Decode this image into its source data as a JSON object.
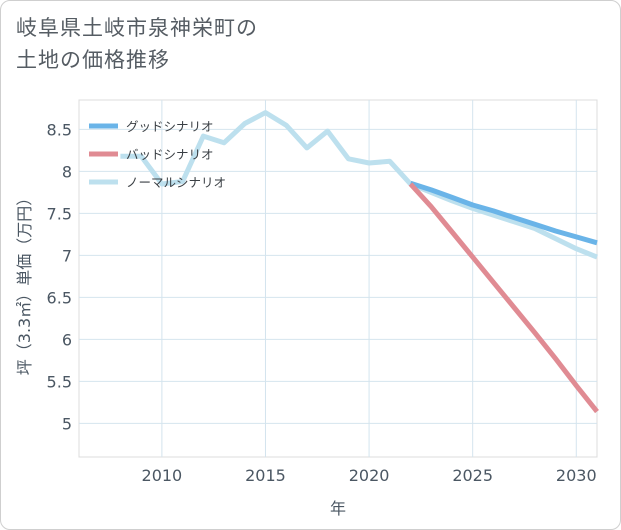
{
  "title": {
    "line1": "岐阜県土岐市泉神栄町の",
    "line2": "土地の価格推移"
  },
  "chart_data": {
    "type": "line",
    "title": "岐阜県土岐市泉神栄町の土地の価格推移",
    "xlabel": "年",
    "ylabel": "坪（3.3㎡）単価（万円）",
    "xlim": [
      2006,
      2031
    ],
    "ylim": [
      4.6,
      8.85
    ],
    "x_ticks": [
      2010,
      2015,
      2020,
      2025,
      2030
    ],
    "y_ticks": [
      5,
      5.5,
      6,
      6.5,
      7,
      7.5,
      8,
      8.5
    ],
    "grid": true,
    "legend_position": "top-left",
    "series": [
      {
        "name": "ノーマルシナリオ",
        "color": "#bde0ee",
        "points": [
          [
            2008,
            8.18
          ],
          [
            2009,
            8.18
          ],
          [
            2010,
            7.85
          ],
          [
            2011,
            7.88
          ],
          [
            2012,
            8.42
          ],
          [
            2013,
            8.34
          ],
          [
            2014,
            8.57
          ],
          [
            2015,
            8.7
          ],
          [
            2016,
            8.55
          ],
          [
            2017,
            8.28
          ],
          [
            2018,
            8.48
          ],
          [
            2019,
            8.15
          ],
          [
            2020,
            8.1
          ],
          [
            2021,
            8.12
          ],
          [
            2022,
            7.85
          ],
          [
            2023,
            7.75
          ],
          [
            2024,
            7.65
          ],
          [
            2025,
            7.56
          ],
          [
            2026,
            7.48
          ],
          [
            2027,
            7.4
          ],
          [
            2028,
            7.32
          ],
          [
            2029,
            7.2
          ],
          [
            2030,
            7.08
          ],
          [
            2031,
            6.98
          ]
        ]
      },
      {
        "name": "グッドシナリオ",
        "color": "#6ab4e8",
        "points": [
          [
            2022,
            7.86
          ],
          [
            2023,
            7.78
          ],
          [
            2024,
            7.69
          ],
          [
            2025,
            7.6
          ],
          [
            2026,
            7.53
          ],
          [
            2027,
            7.45
          ],
          [
            2028,
            7.37
          ],
          [
            2029,
            7.29
          ],
          [
            2030,
            7.22
          ],
          [
            2031,
            7.15
          ]
        ]
      },
      {
        "name": "バッドシナリオ",
        "color": "#e08b93",
        "points": [
          [
            2022,
            7.85
          ],
          [
            2023,
            7.58
          ],
          [
            2024,
            7.28
          ],
          [
            2025,
            6.98
          ],
          [
            2026,
            6.68
          ],
          [
            2027,
            6.38
          ],
          [
            2028,
            6.08
          ],
          [
            2029,
            5.77
          ],
          [
            2030,
            5.45
          ],
          [
            2031,
            5.14
          ]
        ]
      }
    ],
    "legend": [
      {
        "name": "グッドシナリオ",
        "color": "#6ab4e8"
      },
      {
        "name": "バッドシナリオ",
        "color": "#e08b93"
      },
      {
        "name": "ノーマルシナリオ",
        "color": "#bde0ee"
      }
    ]
  }
}
